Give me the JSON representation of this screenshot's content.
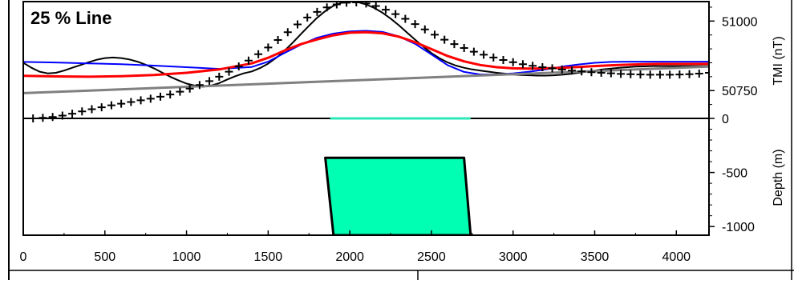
{
  "chart_data": {
    "type": "line",
    "title": "25 % Line",
    "x_ticks": [
      "0",
      "500",
      "1000",
      "1500",
      "2000",
      "2500",
      "3000",
      "3500",
      "4000"
    ],
    "x_range": [
      0,
      4200
    ],
    "top_panel": {
      "ylabel": "TMI (nT)",
      "y_ticks": [
        "51000",
        "50750",
        "0"
      ],
      "ylim": [
        50650,
        51070
      ],
      "series": [
        {
          "style": "plus-markers",
          "color": "#000000",
          "x": [
            0,
            60,
            120,
            180,
            240,
            300,
            360,
            420,
            480,
            540,
            600,
            660,
            720,
            780,
            840,
            900,
            960,
            1020,
            1080,
            1140,
            1200,
            1260,
            1320,
            1380,
            1440,
            1500,
            1560,
            1620,
            1680,
            1740,
            1800,
            1860,
            1920,
            1980,
            2040,
            2100,
            2160,
            2220,
            2280,
            2340,
            2400,
            2460,
            2520,
            2580,
            2640,
            2700,
            2760,
            2820,
            2880,
            2940,
            3000,
            3060,
            3120,
            3180,
            3240,
            3300,
            3360,
            3420,
            3480,
            3540,
            3600,
            3660,
            3720,
            3780,
            3840,
            3900,
            3960,
            4020,
            4080,
            4140,
            4200
          ],
          "y": [
            50650,
            50650,
            50652,
            50655,
            50660,
            50667,
            50675,
            50683,
            50690,
            50697,
            50703,
            50709,
            50715,
            50721,
            50728,
            50736,
            50746,
            50757,
            50770,
            50784,
            50800,
            50818,
            50837,
            50858,
            50881,
            50905,
            50932,
            50960,
            50988,
            51013,
            51033,
            51049,
            51060,
            51066,
            51067,
            51063,
            51054,
            51041,
            51025,
            51008,
            50989,
            50970,
            50951,
            50933,
            50917,
            50903,
            50890,
            50879,
            50869,
            50860,
            50852,
            50845,
            50839,
            50834,
            50830,
            50826,
            50822,
            50819,
            50816,
            50814,
            50812,
            50810,
            50809,
            50808,
            50807,
            50807,
            50807,
            50808,
            50809,
            50811,
            50814
          ]
        },
        {
          "style": "line",
          "color": "#000000",
          "x": [
            0,
            50,
            100,
            150,
            200,
            250,
            300,
            350,
            400,
            450,
            500,
            550,
            600,
            650,
            700,
            750,
            800,
            850,
            900,
            950,
            1000,
            1050,
            1100,
            1150,
            1200,
            1250,
            1300,
            1350,
            1400,
            1450,
            1500,
            1550,
            1600,
            1650,
            1700,
            1750,
            1800,
            1850,
            1900,
            1950,
            2000,
            2050,
            2100,
            2150,
            2200,
            2250,
            2300,
            2350,
            2400,
            2450,
            2500,
            2550,
            2600,
            2650,
            2700,
            2750,
            2800,
            2850,
            2900,
            2950,
            3000,
            3050,
            3100,
            3150,
            3200,
            3250,
            3300,
            3350,
            3400,
            3450,
            3500,
            3550,
            3600,
            3650,
            3700,
            3750,
            3800,
            3850,
            3900,
            3950,
            4000,
            4050,
            4100,
            4150,
            4200
          ],
          "y": [
            50850,
            50832,
            50818,
            50812,
            50814,
            50822,
            50832,
            50842,
            50852,
            50861,
            50867,
            50869,
            50867,
            50862,
            50854,
            50843,
            50830,
            50815,
            50800,
            50787,
            50775,
            50768,
            50764,
            50768,
            50777,
            50790,
            50802,
            50812,
            50819,
            50831,
            50847,
            50868,
            50893,
            50922,
            50953,
            50983,
            51012,
            51036,
            51055,
            51066,
            51070,
            51068,
            51060,
            51047,
            51030,
            51009,
            50985,
            50959,
            50933,
            50908,
            50885,
            50866,
            50851,
            50840,
            50832,
            50826,
            50822,
            50818,
            50814,
            50811,
            50808,
            50806,
            50805,
            50804,
            50804,
            50805,
            50807,
            50810,
            50814,
            50818,
            50822,
            50826,
            50829,
            50832,
            50834,
            50836,
            50837,
            50838,
            50838,
            50838,
            50838,
            50838,
            50838,
            50838,
            50838
          ]
        },
        {
          "style": "line",
          "color": "#0000ff",
          "x": [
            0,
            200,
            400,
            600,
            800,
            1000,
            1200,
            1400,
            1500,
            1600,
            1700,
            1800,
            1900,
            2000,
            2100,
            2200,
            2300,
            2400,
            2500,
            2600,
            2700,
            2800,
            2900,
            3000,
            3100,
            3200,
            3300,
            3400,
            3500,
            3600,
            3700,
            3800,
            3900,
            4000,
            4100,
            4200
          ],
          "y": [
            50853,
            50851,
            50848,
            50845,
            50840,
            50834,
            50828,
            50835,
            50854,
            50885,
            50915,
            50940,
            50955,
            50963,
            50965,
            50961,
            50945,
            50918,
            50880,
            50841,
            50817,
            50808,
            50808,
            50812,
            50818,
            50826,
            50836,
            50844,
            50850,
            50853,
            50854,
            50854,
            50854,
            50854,
            50854,
            50854
          ]
        },
        {
          "style": "line",
          "color": "#ff0000",
          "width": 3,
          "x": [
            0,
            200,
            400,
            600,
            800,
            1000,
            1200,
            1400,
            1500,
            1600,
            1700,
            1800,
            1900,
            2000,
            2100,
            2200,
            2300,
            2400,
            2500,
            2600,
            2700,
            2800,
            2900,
            3000,
            3100,
            3200,
            3300,
            3400,
            3500,
            3600,
            3700,
            3800,
            3900,
            4000,
            4100,
            4200
          ],
          "y": [
            50803,
            50801,
            50800,
            50802,
            50806,
            50814,
            50826,
            50848,
            50868,
            50894,
            50917,
            50934,
            50949,
            50958,
            50960,
            50956,
            50944,
            50924,
            50899,
            50874,
            50855,
            50842,
            50834,
            50830,
            50829,
            50830,
            50832,
            50835,
            50838,
            50841,
            50843,
            50845,
            50846,
            50846,
            50846,
            50846
          ]
        },
        {
          "style": "line",
          "color": "#808080",
          "width": 3,
          "x": [
            0,
            4200
          ],
          "y": [
            50741,
            50836
          ]
        }
      ],
      "profile_segment": {
        "x": [
          1880,
          2740
        ],
        "color": "#2ce8b8"
      }
    },
    "bottom_panel": {
      "ylabel": "Depth (m)",
      "y_ticks": [
        "-500",
        "-1000"
      ],
      "ylim": [
        -1080,
        0
      ],
      "body": {
        "x": [
          1850,
          2700,
          2740,
          1900
        ],
        "y": [
          -365,
          -365,
          -1080,
          -1080
        ],
        "fill": "#00ffb2"
      }
    }
  }
}
